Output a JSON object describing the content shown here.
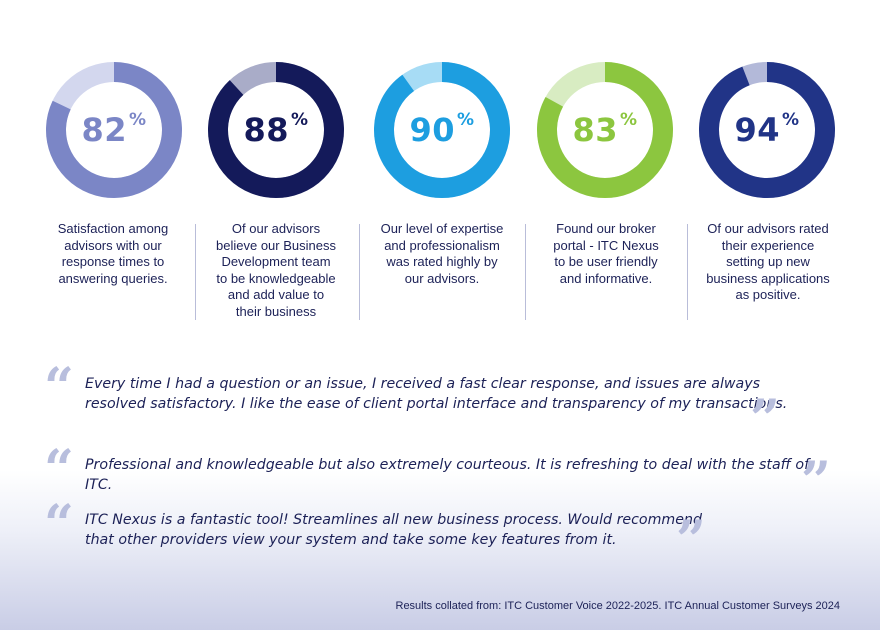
{
  "stats": [
    {
      "value": 82,
      "label": "82",
      "suffix": "%",
      "ring": "#7b86c6",
      "track": "#d3d7ee",
      "text_color": "#7b86c6",
      "lines": [
        "Satisfaction among",
        "advisors with our",
        "response times to",
        "answering queries."
      ]
    },
    {
      "value": 88,
      "label": "88",
      "suffix": "%",
      "ring": "#141a5a",
      "track": "#a9acc8",
      "text_color": "#141a5a",
      "lines": [
        "Of our advisors",
        "believe our Business",
        "Development team",
        "to be knowledgeable",
        "and add value to",
        "their business"
      ]
    },
    {
      "value": 90,
      "label": "90",
      "suffix": "%",
      "ring": "#1d9ee0",
      "track": "#a7dcf5",
      "text_color": "#1d9ee0",
      "lines": [
        "Our level of expertise",
        "and professionalism",
        "was rated highly by",
        "our advisors."
      ]
    },
    {
      "value": 83,
      "label": "83",
      "suffix": "%",
      "ring": "#8cc63f",
      "track": "#d8ecc2",
      "text_color": "#8cc63f",
      "lines": [
        "Found our broker",
        "portal -  ITC Nexus",
        "to be user friendly",
        "and informative."
      ]
    },
    {
      "value": 94,
      "label": "94",
      "suffix": "%",
      "ring": "#213487",
      "track": "#b3b9d9",
      "text_color": "#213487",
      "lines": [
        "Of our advisors rated",
        "their experience",
        "setting up new",
        "business applications",
        "as positive."
      ]
    }
  ],
  "quotes": [
    {
      "lines": [
        "Every time I had a question or an issue, I received a fast clear response, and issues are always",
        "resolved satisfactory. I like the ease of client portal interface and transparency of my transactions."
      ]
    },
    {
      "lines": [
        "Professional and knowledgeable but also extremely courteous. It is refreshing to deal with the staff of ITC."
      ]
    },
    {
      "lines": [
        "ITC Nexus is a fantastic tool! Streamlines all new business process. Would recommend",
        "that other providers view your system and take some key features from it."
      ]
    }
  ],
  "quote_marks": {
    "open": "“",
    "close": "”"
  },
  "source": "Results collated from: ITC Customer Voice 2022-2025. ITC Annual Customer Surveys 2024"
}
